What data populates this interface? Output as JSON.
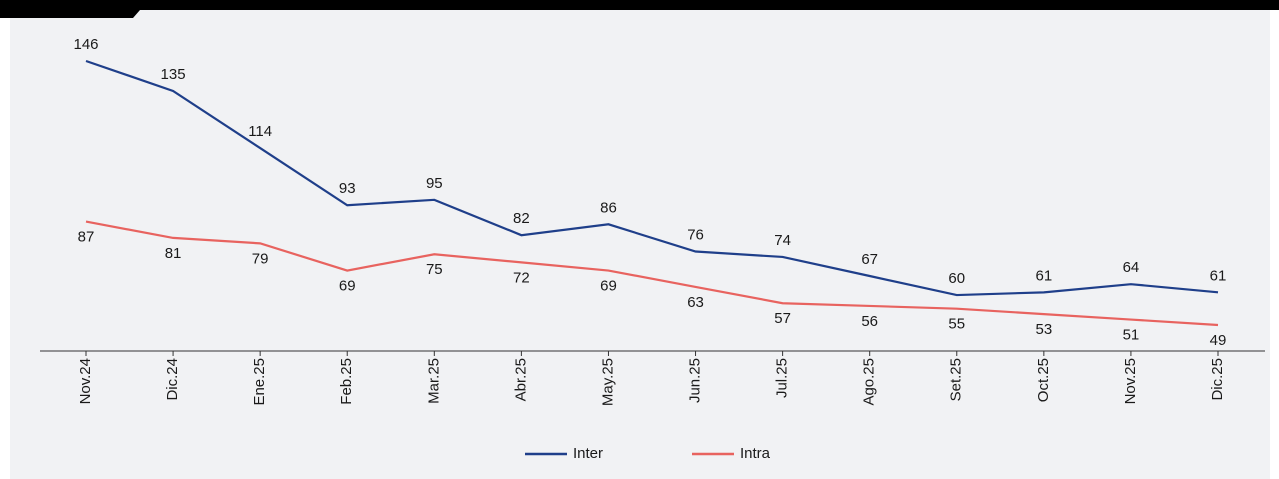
{
  "chart_data": {
    "type": "line",
    "categories": [
      "Nov.24",
      "Dic.24",
      "Ene.25",
      "Feb.25",
      "Mar.25",
      "Abr.25",
      "May.25",
      "Jun.25",
      "Jul.25",
      "Ago.25",
      "Set.25",
      "Oct.25",
      "Nov.25",
      "Dic.25"
    ],
    "series": [
      {
        "name": "Inter",
        "color": "#1f3f8a",
        "values": [
          146,
          135,
          114,
          93,
          95,
          82,
          86,
          76,
          74,
          67,
          60,
          61,
          64,
          61
        ]
      },
      {
        "name": "Intra",
        "color": "#e8635f",
        "values": [
          87,
          81,
          79,
          69,
          75,
          72,
          69,
          63,
          57,
          56,
          55,
          53,
          51,
          49
        ]
      }
    ],
    "legend": "bottom"
  }
}
